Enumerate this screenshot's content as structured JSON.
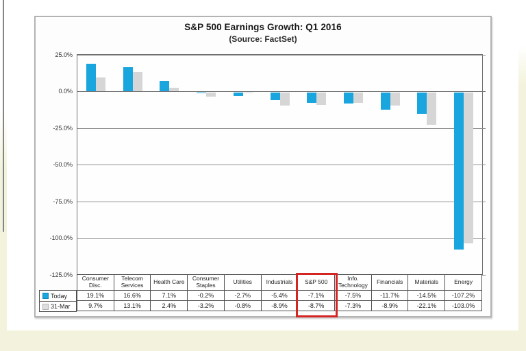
{
  "frame": {
    "cream_color": "#f3f3dd",
    "panel_border_color": "#b3b3b3"
  },
  "chart_data": {
    "type": "bar",
    "title": "S&P 500 Earnings Growth: Q1 2016",
    "subtitle": "(Source: FactSet)",
    "categories": [
      "Consumer Disc.",
      "Telecom Services",
      "Health Care",
      "Consumer Staples",
      "Utilities",
      "Industrials",
      "S&P 500",
      "Info. Technology",
      "Financials",
      "Materials",
      "Energy"
    ],
    "series": [
      {
        "name": "Today",
        "color": "#19a5de",
        "values": [
          19.1,
          16.6,
          7.1,
          -0.2,
          -2.7,
          -5.4,
          -7.1,
          -7.5,
          -11.7,
          -14.5,
          -107.2
        ]
      },
      {
        "name": "31-Mar",
        "color": "#d6d6d6",
        "values": [
          9.7,
          13.1,
          2.4,
          -3.2,
          -0.8,
          -8.9,
          -8.7,
          -7.3,
          -8.9,
          -22.1,
          -103.0
        ]
      }
    ],
    "y_axis": {
      "tick_labels": [
        "25.0%",
        "0.0%",
        "-25.0%",
        "-50.0%",
        "-75.0%",
        "-100.0%",
        "-125.0%"
      ],
      "tick_values": [
        25,
        0,
        -25,
        -50,
        -75,
        -100,
        -125
      ],
      "ylim": [
        -125,
        25
      ]
    },
    "grid": true,
    "legend_position": "table-left",
    "highlight": {
      "category": "S&P 500",
      "box_color": "#d42525"
    }
  },
  "table": {
    "row_labels": [
      "Today",
      "31-Mar"
    ],
    "columns": [
      "Consumer Disc.",
      "Telecom Services",
      "Health Care",
      "Consumer Staples",
      "Utilities",
      "Industrials",
      "S&P 500",
      "Info. Technology",
      "Financials",
      "Materials",
      "Energy"
    ],
    "rows": [
      [
        "19.1%",
        "16.6%",
        "7.1%",
        "-0.2%",
        "-2.7%",
        "-5.4%",
        "-7.1%",
        "-7.5%",
        "-11.7%",
        "-14.5%",
        "-107.2%"
      ],
      [
        "9.7%",
        "13.1%",
        "2.4%",
        "-3.2%",
        "-0.8%",
        "-8.9%",
        "-8.7%",
        "-7.3%",
        "-8.9%",
        "-22.1%",
        "-103.0%"
      ]
    ]
  }
}
